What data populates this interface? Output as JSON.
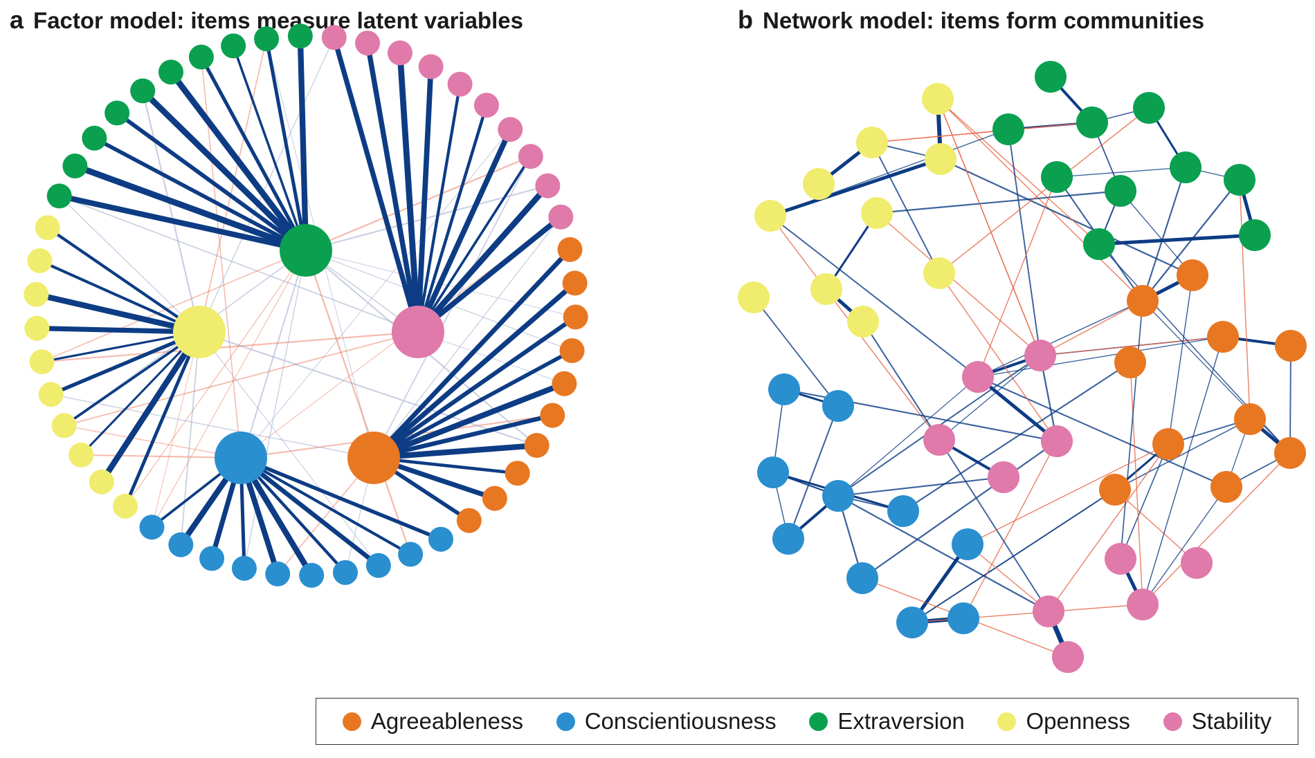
{
  "panel_a": {
    "letter": "a",
    "title": "Factor model: items measure latent variables"
  },
  "panel_b": {
    "letter": "b",
    "title": "Network model: items form communities"
  },
  "legend": [
    {
      "label": "Agreeableness",
      "color": "#e87722"
    },
    {
      "label": "Conscientiousness",
      "color": "#2a8fcf"
    },
    {
      "label": "Extraversion",
      "color": "#0aa04f"
    },
    {
      "label": "Openness",
      "color": "#f0ec6e"
    },
    {
      "label": "Stability",
      "color": "#df7aaa"
    }
  ],
  "colors": {
    "edge_positive": "#0d3c84",
    "edge_negative": "#e8694a",
    "edge_faint": "#a7b1d0"
  }
}
